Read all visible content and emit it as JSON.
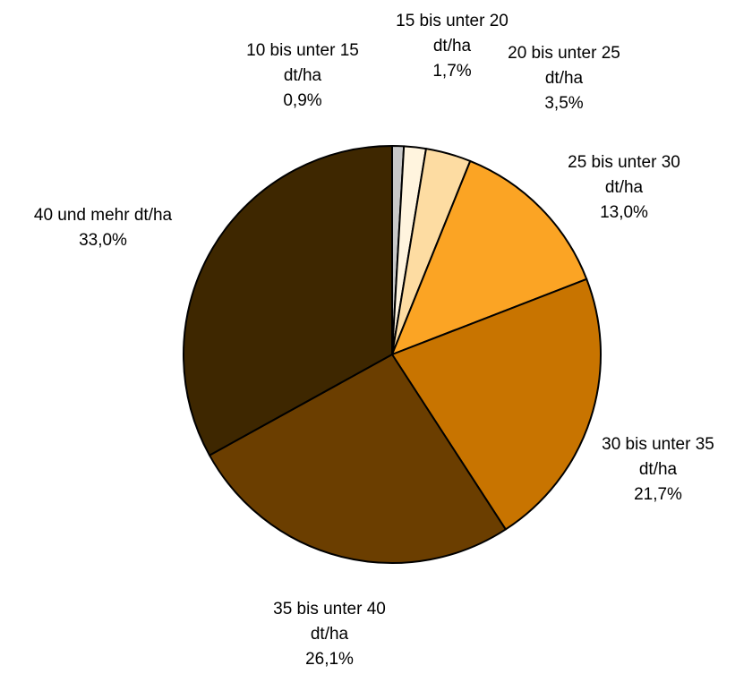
{
  "chart_data": {
    "type": "pie",
    "categories": [
      "10 bis unter 15 dt/ha",
      "15 bis unter 20 dt/ha",
      "20 bis unter 25 dt/ha",
      "25 bis unter 30 dt/ha",
      "30 bis unter 35 dt/ha",
      "35 bis unter 40 dt/ha",
      "40 und mehr dt/ha"
    ],
    "values": [
      0.9,
      1.7,
      3.5,
      13.0,
      21.7,
      26.1,
      33.0
    ],
    "value_labels": [
      "0,9%",
      "1,7%",
      "3,5%",
      "13,0%",
      "21,7%",
      "26,1%",
      "33,0%"
    ],
    "colors": [
      "#c8c8c8",
      "#fff4de",
      "#fddca2",
      "#fba424",
      "#c87400",
      "#6b3e00",
      "#3e2700"
    ]
  }
}
